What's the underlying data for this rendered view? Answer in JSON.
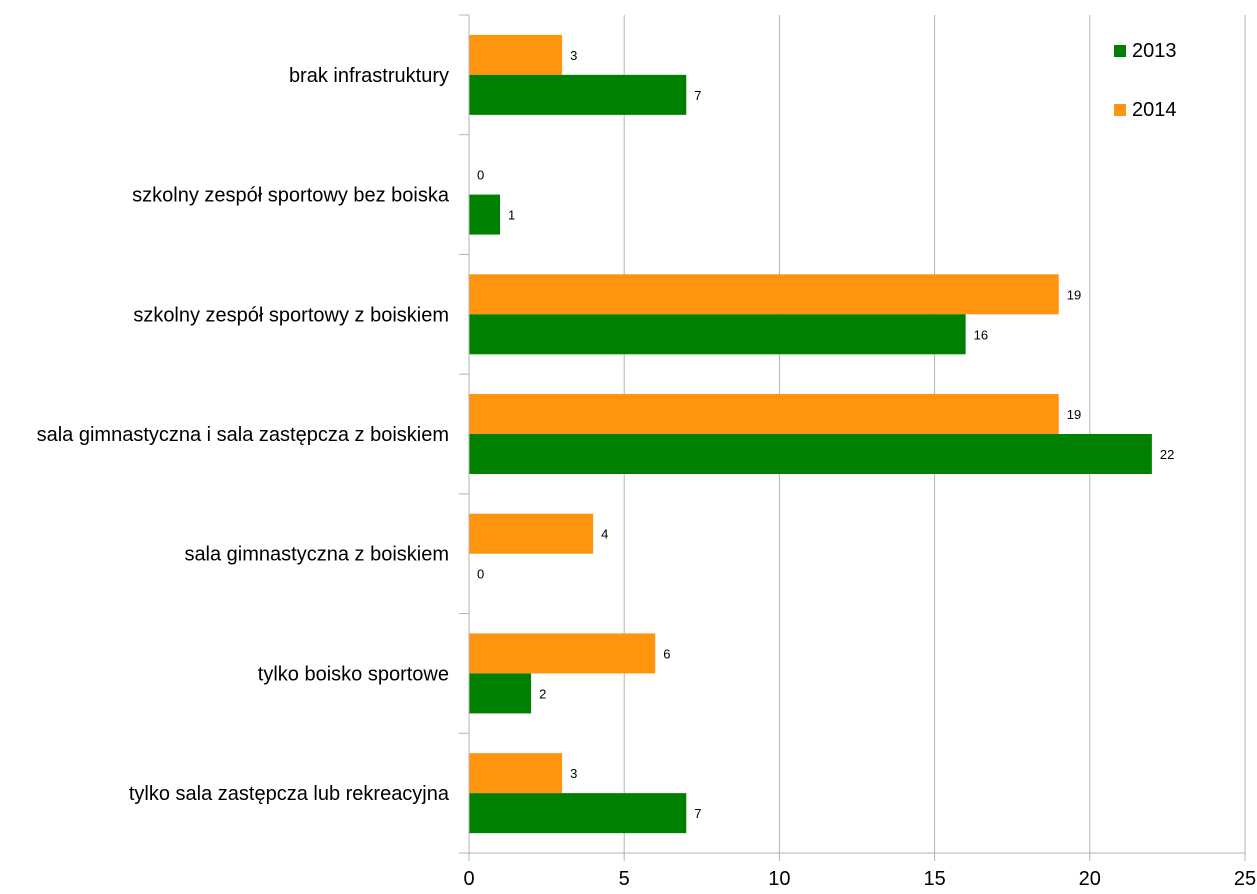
{
  "chart_data": {
    "type": "bar",
    "orientation": "horizontal",
    "categories": [
      "brak infrastruktury",
      "szkolny zespół sportowy bez boiska",
      "szkolny zespół sportowy z boiskiem",
      "sala gimnastyczna i sala zastępcza z boiskiem",
      "sala gimnastyczna z boiskiem",
      "tylko boisko sportowe",
      "tylko sala zastępcza lub rekreacyjna"
    ],
    "series": [
      {
        "name": "2013",
        "color": "#008000",
        "values": [
          7,
          1,
          16,
          22,
          0,
          2,
          7
        ]
      },
      {
        "name": "2014",
        "color": "#ff950e",
        "values": [
          3,
          0,
          19,
          19,
          4,
          6,
          3
        ]
      }
    ],
    "xlim": [
      0,
      25
    ],
    "xticks": [
      0,
      5,
      10,
      15,
      20,
      25
    ],
    "grid": true,
    "gridColor": "#b3b3b3",
    "legend_position": "top-right",
    "show_data_labels": true
  }
}
